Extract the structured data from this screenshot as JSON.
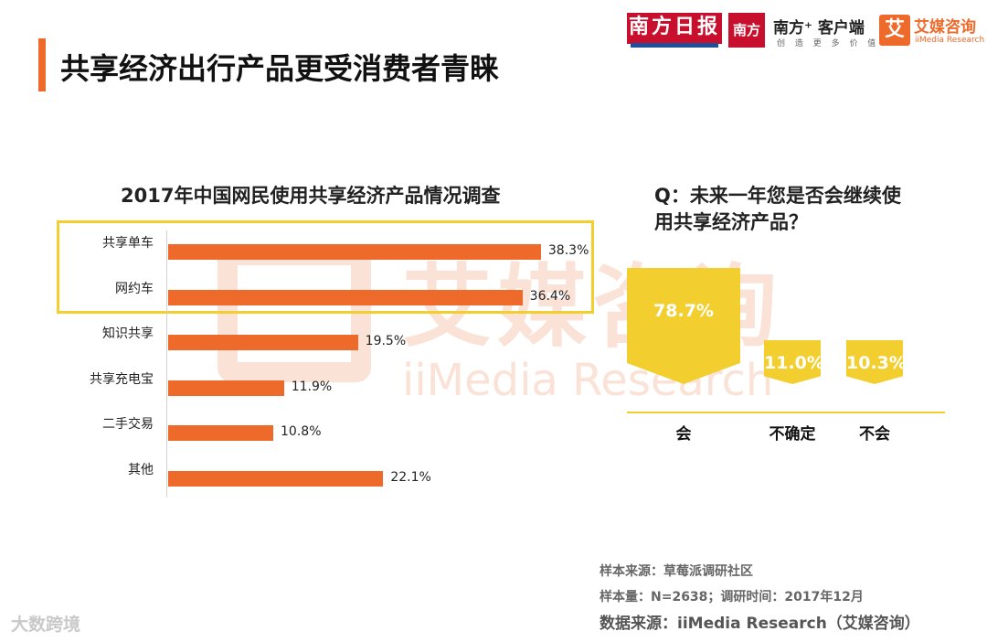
{
  "page": {
    "title": "共享经济出行产品更受消费者青睐"
  },
  "logos": {
    "nanfang_daily": "南方日报",
    "nanfang_plus_mark": "南方+",
    "nanfang_plus": "南方⁺ 客户端",
    "nanfang_plus_sub": "创 造 更 多 价 值",
    "aimedia_mark": "艾",
    "aimedia": "艾媒咨询",
    "aimedia_sub": "iiMedia Research"
  },
  "watermark": {
    "cn": "艾媒咨询",
    "en": "iiMedia Research"
  },
  "chart_data": [
    {
      "type": "bar",
      "orientation": "horizontal",
      "title": "2017年中国网民使用共享经济产品情况调查",
      "categories": [
        "共享单车",
        "网约车",
        "知识共享",
        "共享充电宝",
        "二手交易",
        "其他"
      ],
      "values": [
        38.3,
        36.4,
        19.5,
        11.9,
        10.8,
        22.1
      ],
      "value_labels": [
        "38.3%",
        "36.4%",
        "19.5%",
        "11.9%",
        "10.8%",
        "22.1%"
      ],
      "unit": "%",
      "highlighted": [
        "共享单车",
        "网约车"
      ],
      "color": "#ee6a2a",
      "highlight_color": "#f2cf2f"
    },
    {
      "type": "bar",
      "orientation": "vertical",
      "title": "Q：未来一年您是否会继续使用共享经济产品？",
      "categories": [
        "会",
        "不确定",
        "不会"
      ],
      "values": [
        78.7,
        11.0,
        10.3
      ],
      "value_labels": [
        "78.7%",
        "11.0%",
        "10.3%"
      ],
      "unit": "%",
      "color": "#f2cf2f"
    }
  ],
  "footer": {
    "sample_source": "样本来源：草莓派调研社区",
    "sample_size": "样本量：N=2638；调研时间：2017年12月",
    "data_source": "数据来源：iiMedia Research（艾媒咨询）"
  },
  "corner_mark": "大数跨境"
}
